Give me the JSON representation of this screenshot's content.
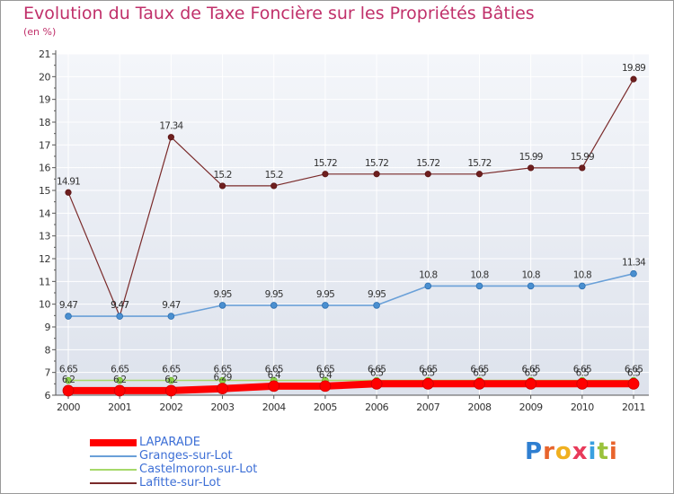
{
  "header": {
    "title": "Evolution du Taux de Taxe Foncière sur les Propriétés Bâties",
    "unit": "(en %)"
  },
  "logo": {
    "letters": [
      "P",
      "r",
      "o",
      "x",
      "i",
      "t",
      "i"
    ],
    "colors": [
      "#2f7fd1",
      "#e8642c",
      "#f0b020",
      "#e83a5a",
      "#3aa0e0",
      "#9ac23c",
      "#e8642c"
    ]
  },
  "colors": {
    "laparade": "#ff0000",
    "granges": "#6aa0d8",
    "castelmoron": "#a6d96a",
    "lafitte": "#7a2a2a",
    "axis": "#555555",
    "grid": "#ffffff"
  },
  "chart_data": {
    "type": "line",
    "title": "Evolution du Taux de Taxe Foncière sur les Propriétés Bâties",
    "ylabel": "(en %)",
    "xlabel": "",
    "ylim": [
      6,
      21
    ],
    "yticks": [
      "6",
      "7",
      "8",
      "9",
      "10",
      "11",
      "12",
      "13",
      "14",
      "15",
      "16",
      "17",
      "18",
      "19",
      "20",
      "21"
    ],
    "categories": [
      "2000",
      "2001",
      "2002",
      "2003",
      "2004",
      "2005",
      "2006",
      "2007",
      "2008",
      "2009",
      "2010",
      "2011"
    ],
    "series": [
      {
        "key": "lafitte",
        "name": "Lafitte-sur-Lot",
        "values": [
          14.91,
          9.47,
          17.34,
          15.2,
          15.2,
          15.72,
          15.72,
          15.72,
          15.72,
          15.99,
          15.99,
          19.89
        ],
        "labels": [
          "14.91",
          "9.47",
          "17.34",
          "15.2",
          "15.2",
          "15.72",
          "15.72",
          "15.72",
          "15.72",
          "15.99",
          "15.99",
          "19.89"
        ]
      },
      {
        "key": "granges",
        "name": "Granges-sur-Lot",
        "values": [
          9.47,
          9.47,
          9.47,
          9.95,
          9.95,
          9.95,
          9.95,
          10.8,
          10.8,
          10.8,
          10.8,
          11.34
        ],
        "labels": [
          "9.47",
          "9.47",
          "9.47",
          "9.95",
          "9.95",
          "9.95",
          "9.95",
          "10.8",
          "10.8",
          "10.8",
          "10.8",
          "11.34"
        ]
      },
      {
        "key": "castelmoron",
        "name": "Castelmoron-sur-Lot",
        "values": [
          6.65,
          6.65,
          6.65,
          6.65,
          6.65,
          6.65,
          6.65,
          6.65,
          6.65,
          6.65,
          6.65,
          6.65
        ],
        "labels": [
          "6.65",
          "6.65",
          "6.65",
          "6.65",
          "6.65",
          "6.65",
          "6.65",
          "6.65",
          "6.65",
          "6.65",
          "6.65",
          "6.65"
        ]
      },
      {
        "key": "laparade",
        "name": "LAPARADE",
        "values": [
          6.2,
          6.2,
          6.2,
          6.29,
          6.4,
          6.4,
          6.5,
          6.5,
          6.5,
          6.5,
          6.5,
          6.5
        ],
        "labels": [
          "6.2",
          "6.2",
          "6.2",
          "6.29",
          "6.4",
          "6.4",
          "6.5",
          "6.5",
          "6.5",
          "6.5",
          "6.5",
          "6.5"
        ]
      }
    ],
    "legend": [
      "LAPARADE",
      "Granges-sur-Lot",
      "Castelmoron-sur-Lot",
      "Lafitte-sur-Lot"
    ]
  }
}
